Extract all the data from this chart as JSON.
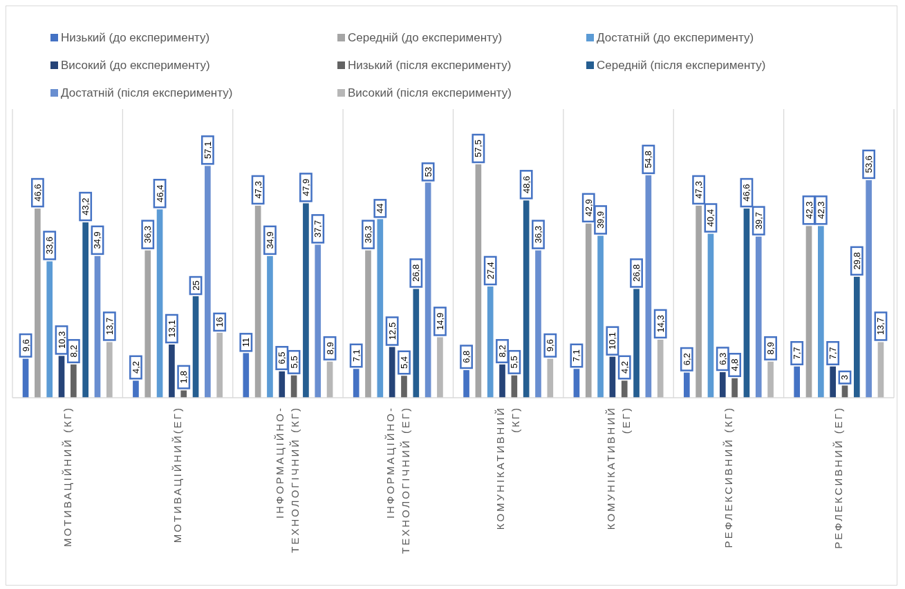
{
  "chart_data": {
    "type": "bar",
    "categories": [
      "МОТИВАЦІЙНИЙ (КГ)",
      "МОТИВАЦІЙНИЙ(ЕГ)",
      "ІНФОРМАЦІЙНО-ТЕХНОЛОГІЧНИЙ (КГ)",
      "ІНФОРМАЦІЙНО-ТЕХНОЛОГІЧНИЙ (ЕГ)",
      "КОМУНІКАТИВНИЙ (КГ)",
      "КОМУНІКАТИВНИЙ (ЕГ)",
      "РЕФЛЕКСИВНИЙ (КГ)",
      "РЕФЛЕКСИВНИЙ (ЕГ)"
    ],
    "series": [
      {
        "name": "Низький (до експерименту)",
        "color": "#4472c4",
        "values": [
          9.6,
          4.2,
          11,
          7.1,
          6.8,
          7.1,
          6.2,
          7.7
        ],
        "value_labels": [
          "9,6",
          "4,2",
          "11",
          "7,1",
          "6,8",
          "7,1",
          "6,2",
          "7,7"
        ]
      },
      {
        "name": "Середній (до експерименту)",
        "color": "#a5a5a5",
        "values": [
          46.6,
          36.3,
          47.3,
          36.3,
          57.5,
          42.9,
          47.3,
          42.3
        ],
        "value_labels": [
          "46,6",
          "36,3",
          "47,3",
          "36,3",
          "57,5",
          "42,9",
          "47,3",
          "42,3"
        ]
      },
      {
        "name": "Достатній (до експерименту)",
        "color": "#5b9bd5",
        "values": [
          33.6,
          46.4,
          34.9,
          44,
          27.4,
          39.9,
          40.4,
          42.3
        ],
        "value_labels": [
          "33,6",
          "46,4",
          "34,9",
          "44",
          "27,4",
          "39,9",
          "40,4",
          "42,3"
        ]
      },
      {
        "name": "Високий (до експерименту)",
        "color": "#264478",
        "values": [
          10.3,
          13.1,
          6.5,
          12.5,
          8.2,
          10.1,
          6.3,
          7.7
        ],
        "value_labels": [
          "10,3",
          "13,1",
          "6,5",
          "12,5",
          "8,2",
          "10,1",
          "6,3",
          "7,7"
        ]
      },
      {
        "name": "Низький (після експерименту)",
        "color": "#636363",
        "values": [
          8.2,
          1.8,
          5.5,
          5.4,
          5.5,
          4.2,
          4.8,
          3
        ],
        "value_labels": [
          "8,2",
          "1,8",
          "5,5",
          "5,4",
          "5,5",
          "4,2",
          "4,8",
          "3"
        ]
      },
      {
        "name": "Середній (після експерименту)",
        "color": "#255e91",
        "values": [
          43.2,
          25,
          47.9,
          26.8,
          48.6,
          26.8,
          46.6,
          29.8
        ],
        "value_labels": [
          "43,2",
          "25",
          "47,9",
          "26,8",
          "48,6",
          "26,8",
          "46,6",
          "29,8"
        ]
      },
      {
        "name": "Достатній (після експерименту)",
        "color": "#698ed0",
        "values": [
          34.9,
          57.1,
          37.7,
          53,
          36.3,
          54.8,
          39.7,
          53.6
        ],
        "value_labels": [
          "34,9",
          "57,1",
          "37,7",
          "53",
          "36,3",
          "54,8",
          "39,7",
          "53,6"
        ]
      },
      {
        "name": "Високий (після експерименту)",
        "color": "#b7b7b7",
        "values": [
          13.7,
          16,
          8.9,
          14.9,
          9.6,
          14.3,
          8.9,
          13.7
        ],
        "value_labels": [
          "13,7",
          "16",
          "8,9",
          "14,9",
          "9,6",
          "14,3",
          "8,9",
          "13,7"
        ]
      }
    ],
    "grid": "x",
    "legend": "top"
  }
}
